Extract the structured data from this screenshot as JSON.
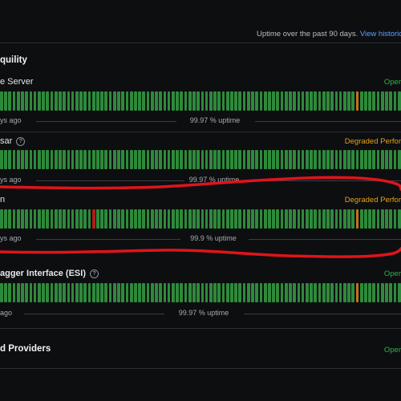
{
  "header": {
    "note": "Uptime over the past 90 days.",
    "link": "View historic"
  },
  "groups": [
    {
      "title": "quility",
      "services": [
        {
          "name": "e Server",
          "status": "Oper",
          "status_color": "#2fb34a",
          "has_help": false,
          "ago": "ys ago",
          "uptime": "99.97 % uptime",
          "degraded_bars": [
            85
          ],
          "outage_bars": []
        },
        {
          "name": "sar",
          "status": "Degraded Perfor",
          "status_color": "#e8a316",
          "has_help": true,
          "ago": "ys ago",
          "uptime": "99.97 % uptime",
          "degraded_bars": [],
          "outage_bars": []
        },
        {
          "name": "n",
          "status": "Degraded Perfor",
          "status_color": "#e8a316",
          "has_help": false,
          "ago": "ys ago",
          "uptime": "99.9 % uptime",
          "degraded_bars": [
            85
          ],
          "outage_bars": [
            22
          ]
        },
        {
          "name": "agger Interface (ESI)",
          "status": "Oper",
          "status_color": "#2fb34a",
          "has_help": true,
          "ago": "ago",
          "uptime": "99.97 % uptime",
          "degraded_bars": [
            85
          ],
          "outage_bars": []
        }
      ]
    },
    {
      "title": "d Providers",
      "status": "Oper",
      "status_color": "#2fb34a"
    }
  ],
  "bar_count": 96
}
